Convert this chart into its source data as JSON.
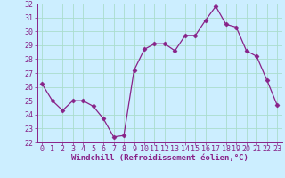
{
  "x": [
    0,
    1,
    2,
    3,
    4,
    5,
    6,
    7,
    8,
    9,
    10,
    11,
    12,
    13,
    14,
    15,
    16,
    17,
    18,
    19,
    20,
    21,
    22,
    23
  ],
  "y": [
    26.2,
    25.0,
    24.3,
    25.0,
    25.0,
    24.6,
    23.7,
    22.4,
    22.5,
    27.2,
    28.7,
    29.1,
    29.1,
    28.6,
    29.7,
    29.7,
    30.8,
    31.8,
    30.5,
    30.3,
    28.6,
    28.2,
    26.5,
    24.7
  ],
  "xlim": [
    -0.5,
    23.5
  ],
  "ylim": [
    22,
    32
  ],
  "yticks": [
    22,
    23,
    24,
    25,
    26,
    27,
    28,
    29,
    30,
    31,
    32
  ],
  "xticks": [
    0,
    1,
    2,
    3,
    4,
    5,
    6,
    7,
    8,
    9,
    10,
    11,
    12,
    13,
    14,
    15,
    16,
    17,
    18,
    19,
    20,
    21,
    22,
    23
  ],
  "xlabel": "Windchill (Refroidissement éolien,°C)",
  "line_color": "#882288",
  "marker": "D",
  "marker_size": 2.5,
  "bg_color": "#cceeff",
  "grid_color": "#aaddcc",
  "tick_color": "#882288",
  "label_color": "#882288",
  "xlabel_fontsize": 6.5,
  "tick_fontsize": 6.0
}
